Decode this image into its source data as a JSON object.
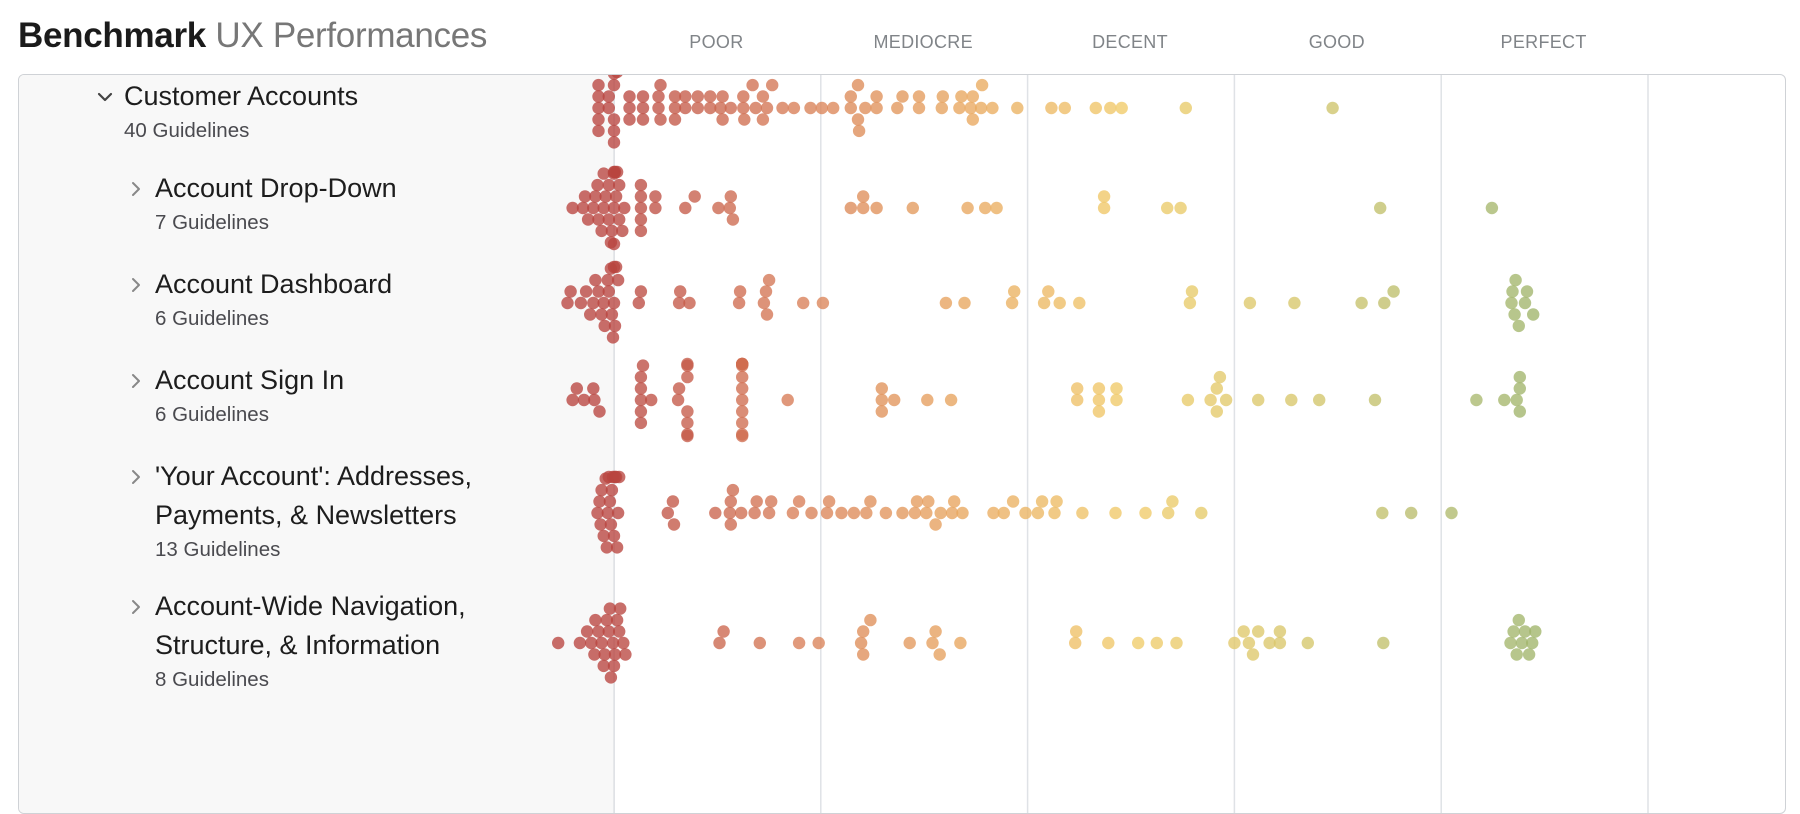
{
  "header": {
    "title_bold": "Benchmark",
    "title_light": "UX Performances"
  },
  "chart_data": {
    "type": "scatter",
    "subtype": "beeswarm",
    "title": "Benchmark UX Performances",
    "xlim": [
      0,
      100
    ],
    "x_gridlines": [
      0,
      20,
      40,
      60,
      80,
      100
    ],
    "bands": [
      {
        "label": "POOR",
        "range": [
          0,
          20
        ]
      },
      {
        "label": "MEDIOCRE",
        "range": [
          20,
          40
        ]
      },
      {
        "label": "DECENT",
        "range": [
          40,
          60
        ]
      },
      {
        "label": "GOOD",
        "range": [
          60,
          80
        ]
      },
      {
        "label": "PERFECT",
        "range": [
          80,
          100
        ]
      }
    ],
    "color_scale": [
      "#b8443f",
      "#d77b56",
      "#e8a55e",
      "#f1cc69",
      "#d6c66a",
      "#a9b86e",
      "#8fae63"
    ],
    "rows": [
      {
        "name": "Customer Accounts",
        "subtitle": "40 Guidelines",
        "expanded": true,
        "level": 0,
        "scores": [
          -1.5,
          -1.5,
          -1.5,
          -1.5,
          -1.5,
          -0.5,
          -0.5,
          0,
          0,
          0,
          0,
          0,
          0.3,
          1.5,
          1.5,
          1.5,
          2.8,
          2.8,
          2.8,
          4.3,
          4.3,
          4.5,
          4.5,
          5.9,
          5.9,
          5.9,
          6.9,
          6.9,
          8.1,
          8.1,
          9.3,
          9.3,
          10.3,
          10.5,
          10.5,
          11.3,
          12.5,
          12.5,
          12.6,
          13.4,
          13.7,
          14.4,
          14.4,
          14.8,
          15.3,
          16.3,
          17.4,
          19,
          20.1,
          21.2,
          22.9,
          22.9,
          23.6,
          23.6,
          23.7,
          24.3,
          25.4,
          25.4,
          27.4,
          27.9,
          29.5,
          29.5,
          31.7,
          31.8,
          33.4,
          33.6,
          34.5,
          34.7,
          34.7,
          35.5,
          35.6,
          36.6,
          39,
          42.3,
          43.6,
          46.6,
          48,
          49.1,
          55.3,
          69.5
        ]
      },
      {
        "name": "Account Drop-Down",
        "subtitle": "7 Guidelines",
        "expanded": false,
        "level": 1,
        "scores": [
          -4,
          -3,
          -2.8,
          -2.5,
          -2,
          -1.8,
          -1.6,
          -1.5,
          -1.2,
          -1,
          -1,
          -0.8,
          -0.5,
          -0.5,
          -0.3,
          -0.2,
          0,
          0,
          0,
          0,
          0.1,
          0.2,
          0.3,
          0.5,
          0.5,
          0.8,
          1,
          2.6,
          2.6,
          2.6,
          2.6,
          2.6,
          4,
          4,
          6.9,
          7.8,
          10.1,
          11.2,
          11.3,
          11.5,
          22.9,
          24.1,
          24.1,
          25.4,
          28.9,
          34.2,
          35.9,
          37,
          47.4,
          47.4,
          53.5,
          54.8,
          74.1,
          84.9
        ]
      },
      {
        "name": "Account Dashboard",
        "subtitle": "6 Guidelines",
        "expanded": false,
        "level": 1,
        "scores": [
          -4.5,
          -4.2,
          -3.2,
          -2.7,
          -2.3,
          -2,
          -1.8,
          -1.5,
          -1.2,
          -1,
          -0.9,
          -0.6,
          -0.5,
          -0.3,
          -0.2,
          -0.1,
          0,
          0,
          0.1,
          0.2,
          0.4,
          2.4,
          2.6,
          6.3,
          6.4,
          7.3,
          12.1,
          12.2,
          14.5,
          14.7,
          14.8,
          15,
          18.3,
          20.2,
          32.1,
          33.9,
          38.5,
          38.7,
          41.6,
          42,
          43.1,
          45,
          55.7,
          55.9,
          61.5,
          65.8,
          72.3,
          74.5,
          75.4,
          86.8,
          86.9,
          87.1,
          87.2,
          87.5,
          88.1,
          88.3,
          88.9
        ]
      },
      {
        "name": "Account Sign In",
        "subtitle": "6 Guidelines",
        "expanded": false,
        "level": 1,
        "scores": [
          -4,
          -3.6,
          -2.9,
          -2,
          -1.9,
          -1.4,
          2.6,
          2.6,
          2.6,
          2.6,
          2.6,
          2.8,
          3.6,
          6.2,
          6.3,
          7.1,
          7.1,
          7.1,
          7.1,
          7.1,
          7.1,
          7.1,
          12.4,
          12.4,
          12.4,
          12.4,
          12.4,
          12.4,
          12.4,
          12.4,
          12.4,
          12.4,
          12.4,
          12.4,
          16.8,
          25.9,
          25.9,
          25.9,
          27.1,
          30.3,
          32.6,
          44.8,
          44.8,
          46.9,
          46.9,
          46.9,
          48.6,
          48.6,
          55.5,
          57.7,
          58.3,
          58.3,
          58.6,
          59.2,
          62.3,
          65.5,
          68.2,
          73.6,
          83.4,
          86.1,
          87.3,
          87.6,
          87.6,
          87.6
        ]
      },
      {
        "name": "'Your Account': Addresses, Payments, & Newsletters",
        "subtitle": "13 Guidelines",
        "expanded": false,
        "level": 1,
        "scores": [
          -1.6,
          -1.4,
          -1.3,
          -1.2,
          -1,
          -0.8,
          -0.7,
          -0.6,
          -0.5,
          -0.4,
          -0.3,
          -0.2,
          -0.1,
          0,
          0.1,
          0.2,
          0.3,
          0.4,
          0.5,
          5.2,
          5.7,
          5.8,
          9.8,
          11.2,
          11.3,
          11.3,
          11.5,
          12.3,
          13.6,
          13.8,
          15,
          15.2,
          17.3,
          17.9,
          19.1,
          20.6,
          20.8,
          22,
          23.2,
          24.4,
          24.8,
          26.3,
          27.9,
          29.1,
          29.3,
          30.2,
          30.4,
          31.1,
          31.6,
          32.7,
          32.9,
          33.7,
          36.7,
          37.7,
          38.6,
          39.8,
          41,
          41.4,
          42.6,
          42.8,
          45.3,
          48.5,
          51.4,
          53.6,
          54,
          56.8,
          74.3,
          77.1,
          81
        ]
      },
      {
        "name": "Account-Wide Navigation, Structure, & Information",
        "subtitle": "8 Guidelines",
        "expanded": false,
        "level": 1,
        "scores": [
          -5.4,
          -3.3,
          -2.6,
          -2.2,
          -1.9,
          -1.8,
          -1.5,
          -1.2,
          -1,
          -0.9,
          -0.7,
          -0.5,
          -0.4,
          -0.3,
          -0.1,
          0,
          0.1,
          0.3,
          0.5,
          0.6,
          0.9,
          1.1,
          10.2,
          10.6,
          14.1,
          17.9,
          19.8,
          23.9,
          24.1,
          24.1,
          24.8,
          28.6,
          30.8,
          31.1,
          31.5,
          33.5,
          44.6,
          44.7,
          47.8,
          50.7,
          52.5,
          54.4,
          60,
          60.9,
          61.4,
          61.8,
          62.3,
          63.4,
          64.4,
          64.4,
          67.1,
          74.4,
          86.7,
          87,
          87.3,
          87.5,
          87.8,
          88.1,
          88.5,
          88.8,
          89.1
        ]
      }
    ]
  }
}
